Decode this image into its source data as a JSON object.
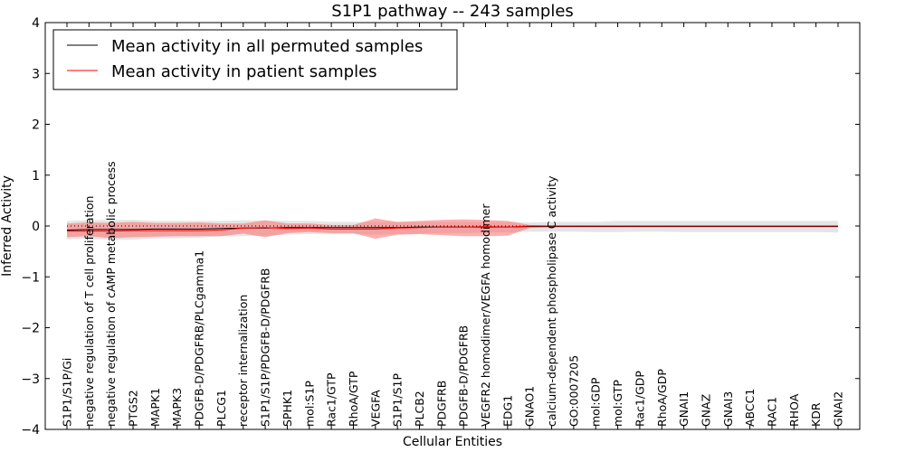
{
  "chart_data": {
    "type": "line",
    "title": "S1P1 pathway -- 243 samples",
    "xlabel": "Cellular Entities",
    "ylabel": "Inferred Activity",
    "ylim": [
      -4,
      4
    ],
    "yticks": [
      "4",
      "3",
      "2",
      "1",
      "0",
      "−1",
      "−2",
      "−3",
      "−4"
    ],
    "ytick_values": [
      4,
      3,
      2,
      1,
      0,
      -1,
      -2,
      -3,
      -4
    ],
    "legend_position": "top-left",
    "categories": [
      "S1P1/S1P/Gi",
      "negative regulation of T cell proliferation",
      "negative regulation of cAMP metabolic process",
      "PTGS2",
      "MAPK1",
      "MAPK3",
      "PDGFB-D/PDGFRB/PLCgamma1",
      "PLCG1",
      "receptor internalization",
      "S1P1/S1P/PDGFB-D/PDGFRB",
      "SPHK1",
      "mol:S1P",
      "Rac1/GTP",
      "RhoA/GTP",
      "VEGFA",
      "S1P1/S1P",
      "PLCB2",
      "PDGFRB",
      "PDGFB-D/PDGFRB",
      "VEGFR2 homodimer/VEGFA homodimer",
      "EDG1",
      "GNAO1",
      "calcium-dependent phospholipase C activity",
      "GO:0007205",
      "mol:GDP",
      "mol:GTP",
      "Rac1/GDP",
      "RhoA/GDP",
      "GNAI1",
      "GNAZ",
      "GNAI3",
      "ABCC1",
      "RAC1",
      "RHOA",
      "KDR",
      "GNAI2"
    ],
    "series": [
      {
        "name": "Mean activity in all permuted samples",
        "color": "#000000",
        "values": [
          -0.08,
          -0.07,
          -0.07,
          -0.07,
          -0.06,
          -0.06,
          -0.06,
          -0.05,
          -0.04,
          -0.04,
          -0.03,
          -0.03,
          -0.03,
          -0.03,
          -0.03,
          -0.03,
          -0.02,
          -0.02,
          -0.02,
          -0.02,
          -0.02,
          -0.01,
          -0.01,
          -0.01,
          -0.01,
          -0.01,
          -0.01,
          -0.01,
          -0.01,
          -0.01,
          -0.01,
          -0.01,
          -0.01,
          -0.01,
          -0.01,
          -0.01
        ],
        "band_upper": [
          0.1,
          0.11,
          0.12,
          0.12,
          0.1,
          0.1,
          0.1,
          0.1,
          0.11,
          0.11,
          0.1,
          0.1,
          0.08,
          0.08,
          0.08,
          0.08,
          0.08,
          0.08,
          0.08,
          0.08,
          0.08,
          0.07,
          0.08,
          0.08,
          0.08,
          0.1,
          0.1,
          0.1,
          0.1,
          0.1,
          0.1,
          0.1,
          0.1,
          0.1,
          0.1,
          0.1
        ],
        "band_lower": [
          -0.26,
          -0.25,
          -0.27,
          -0.27,
          -0.24,
          -0.24,
          -0.23,
          -0.2,
          -0.2,
          -0.19,
          -0.17,
          -0.16,
          -0.16,
          -0.16,
          -0.17,
          -0.16,
          -0.15,
          -0.14,
          -0.14,
          -0.13,
          -0.13,
          -0.11,
          -0.11,
          -0.11,
          -0.12,
          -0.12,
          -0.11,
          -0.11,
          -0.12,
          -0.12,
          -0.12,
          -0.12,
          -0.12,
          -0.12,
          -0.12,
          -0.13
        ]
      },
      {
        "name": "Mean activity in patient samples",
        "color": "#ff0000",
        "values": [
          -0.1,
          -0.1,
          -0.1,
          -0.09,
          -0.09,
          -0.09,
          -0.09,
          -0.08,
          -0.04,
          -0.03,
          -0.05,
          -0.04,
          -0.06,
          -0.06,
          -0.06,
          -0.04,
          -0.03,
          -0.02,
          -0.02,
          -0.01,
          -0.02,
          0.0,
          0.0,
          0.0,
          0.0,
          0.0,
          0.0,
          0.0,
          0.0,
          0.0,
          0.0,
          0.0,
          0.0,
          0.0,
          0.0,
          0.0
        ],
        "band_upper": [
          0.05,
          0.07,
          0.06,
          0.08,
          0.06,
          0.06,
          0.07,
          0.05,
          0.05,
          0.11,
          0.05,
          0.05,
          0.02,
          0.02,
          0.15,
          0.08,
          0.1,
          0.12,
          0.13,
          0.12,
          0.1,
          0.02,
          0.01,
          0.01,
          0.01,
          0.01,
          0.01,
          0.01,
          0.01,
          0.01,
          0.01,
          0.01,
          0.01,
          0.01,
          0.01,
          0.01
        ],
        "band_lower": [
          -0.22,
          -0.2,
          -0.24,
          -0.22,
          -0.21,
          -0.2,
          -0.2,
          -0.2,
          -0.15,
          -0.22,
          -0.14,
          -0.12,
          -0.14,
          -0.14,
          -0.25,
          -0.17,
          -0.16,
          -0.18,
          -0.2,
          -0.2,
          -0.19,
          -0.04,
          -0.02,
          -0.01,
          -0.01,
          -0.01,
          -0.01,
          -0.01,
          -0.01,
          -0.01,
          -0.01,
          -0.01,
          -0.01,
          -0.01,
          -0.01,
          -0.01
        ]
      }
    ],
    "reference_line": {
      "style": "dotted",
      "value": 0.0
    }
  }
}
